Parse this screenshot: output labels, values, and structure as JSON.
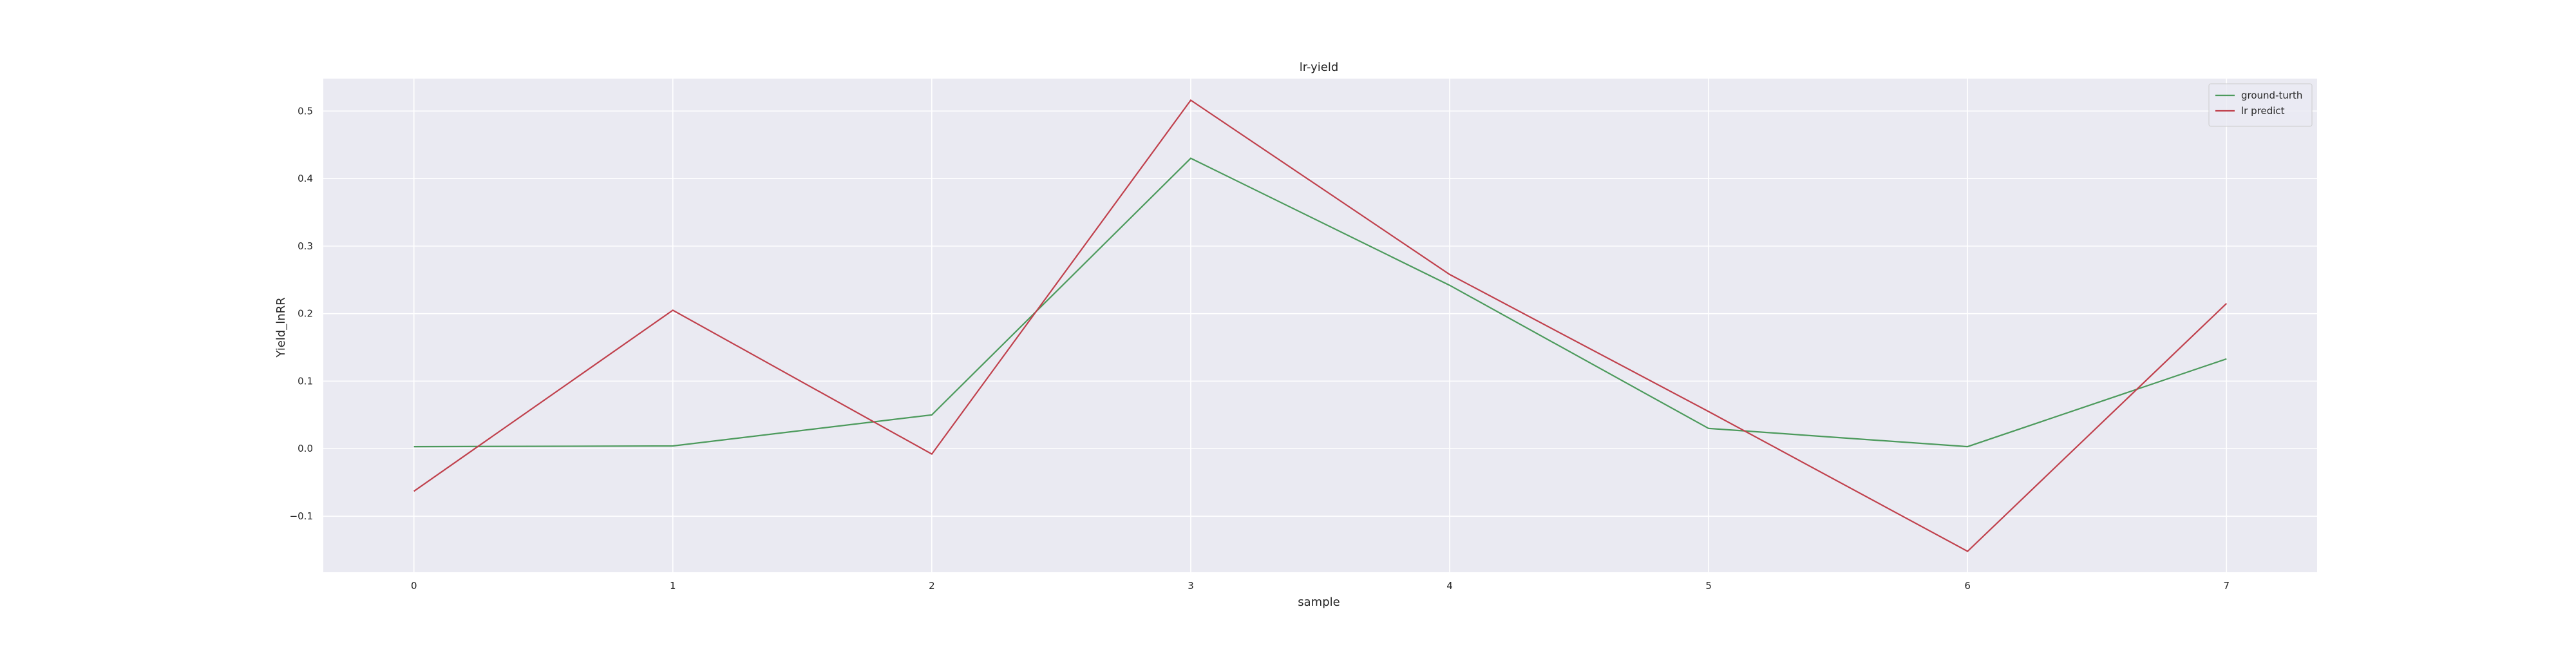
{
  "chart_data": {
    "type": "line",
    "title": "lr-yield",
    "xlabel": "sample",
    "ylabel": "Yield_lnRR",
    "x": [
      0,
      1,
      2,
      3,
      4,
      5,
      6,
      7
    ],
    "xticks": [
      "0",
      "1",
      "2",
      "3",
      "4",
      "5",
      "6",
      "7"
    ],
    "yticks": [
      -0.1,
      0.0,
      0.1,
      0.2,
      0.3,
      0.4,
      0.5
    ],
    "ytick_labels": [
      "−0.1",
      "0.0",
      "0.1",
      "0.2",
      "0.3",
      "0.4",
      "0.5"
    ],
    "xlim": [
      -0.35,
      7.35
    ],
    "ylim": [
      -0.183,
      0.548
    ],
    "grid": true,
    "legend_position": "top-right",
    "background_color": "#eaeaf2",
    "grid_color": "#ffffff",
    "series": [
      {
        "name": "ground-turth",
        "color": "#4c9a5c",
        "values": [
          0.003,
          0.004,
          0.05,
          0.43,
          0.242,
          0.03,
          0.003,
          0.133
        ]
      },
      {
        "name": "lr predict",
        "color": "#c0404c",
        "values": [
          -0.063,
          0.205,
          -0.008,
          0.516,
          0.258,
          0.055,
          -0.152,
          0.215
        ]
      }
    ]
  }
}
